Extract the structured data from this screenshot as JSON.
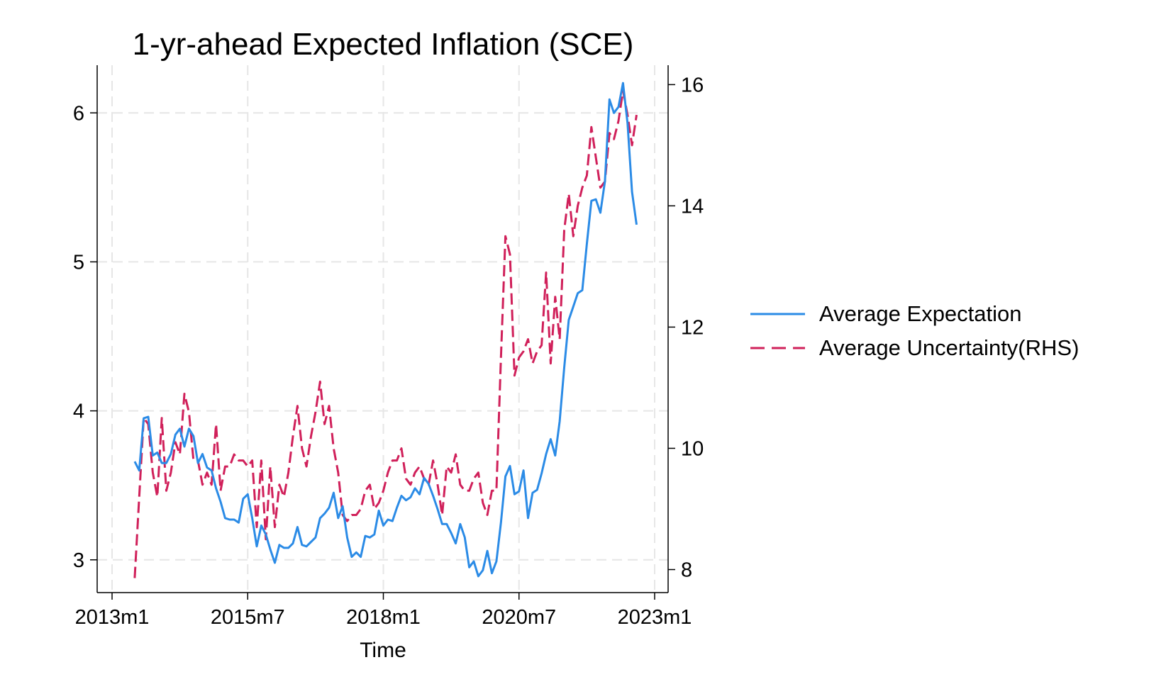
{
  "chart_data": {
    "type": "line",
    "title": "1-yr-ahead Expected Inflation (SCE)",
    "xlabel": "Time",
    "x_ticks": [
      "2013m1",
      "2015m7",
      "2018m1",
      "2020m7",
      "2023m1"
    ],
    "y_left": {
      "ticks": [
        3,
        4,
        5,
        6
      ],
      "range": [
        2.78,
        6.32
      ]
    },
    "y_right": {
      "ticks": [
        8,
        10,
        12,
        14,
        16
      ],
      "range": [
        7.62,
        16.32
      ]
    },
    "x_range": [
      "2013m1",
      "2023m1"
    ],
    "grid": true,
    "legend_position": "right",
    "series": [
      {
        "name": "Average Expectation",
        "axis": "left",
        "color": "#2b8be6",
        "style": "solid",
        "x": [
          "2013m6",
          "2013m7",
          "2013m8",
          "2013m9",
          "2013m10",
          "2013m11",
          "2013m12",
          "2014m1",
          "2014m2",
          "2014m3",
          "2014m4",
          "2014m5",
          "2014m6",
          "2014m7",
          "2014m8",
          "2014m9",
          "2014m10",
          "2014m11",
          "2014m12",
          "2015m1",
          "2015m2",
          "2015m3",
          "2015m4",
          "2015m5",
          "2015m6",
          "2015m7",
          "2015m8",
          "2015m9",
          "2015m10",
          "2015m11",
          "2015m12",
          "2016m1",
          "2016m2",
          "2016m3",
          "2016m4",
          "2016m5",
          "2016m6",
          "2016m7",
          "2016m8",
          "2016m9",
          "2016m10",
          "2016m11",
          "2016m12",
          "2017m1",
          "2017m2",
          "2017m3",
          "2017m4",
          "2017m5",
          "2017m6",
          "2017m7",
          "2017m8",
          "2017m9",
          "2017m10",
          "2017m11",
          "2017m12",
          "2018m1",
          "2018m2",
          "2018m3",
          "2018m4",
          "2018m5",
          "2018m6",
          "2018m7",
          "2018m8",
          "2018m9",
          "2018m10",
          "2018m11",
          "2018m12",
          "2019m1",
          "2019m2",
          "2019m3",
          "2019m4",
          "2019m5",
          "2019m6",
          "2019m7",
          "2019m8",
          "2019m9",
          "2019m10",
          "2019m11",
          "2019m12",
          "2020m1",
          "2020m2",
          "2020m3",
          "2020m4",
          "2020m5",
          "2020m6",
          "2020m7",
          "2020m8",
          "2020m9",
          "2020m10",
          "2020m11",
          "2020m12",
          "2021m1",
          "2021m2",
          "2021m3",
          "2021m4",
          "2021m5",
          "2021m6",
          "2021m7",
          "2021m8",
          "2021m9",
          "2021m10",
          "2021m11",
          "2021m12",
          "2022m1",
          "2022m2",
          "2022m3",
          "2022m4",
          "2022m5",
          "2022m6",
          "2022m7",
          "2022m8",
          "2022m9"
        ],
        "values": [
          3.66,
          3.6,
          3.95,
          3.96,
          3.7,
          3.72,
          3.65,
          3.65,
          3.71,
          3.84,
          3.88,
          3.76,
          3.88,
          3.83,
          3.65,
          3.71,
          3.62,
          3.6,
          3.48,
          3.39,
          3.28,
          3.27,
          3.27,
          3.25,
          3.41,
          3.44,
          3.28,
          3.09,
          3.23,
          3.17,
          3.07,
          2.98,
          3.1,
          3.08,
          3.08,
          3.11,
          3.22,
          3.1,
          3.09,
          3.12,
          3.15,
          3.28,
          3.31,
          3.35,
          3.45,
          3.28,
          3.36,
          3.15,
          3.02,
          3.05,
          3.02,
          3.16,
          3.15,
          3.17,
          3.33,
          3.23,
          3.27,
          3.26,
          3.35,
          3.43,
          3.4,
          3.42,
          3.48,
          3.44,
          3.55,
          3.51,
          3.43,
          3.34,
          3.24,
          3.24,
          3.18,
          3.11,
          3.24,
          3.15,
          2.95,
          2.99,
          2.89,
          2.93,
          3.06,
          2.91,
          2.99,
          3.25,
          3.56,
          3.63,
          3.44,
          3.46,
          3.6,
          3.28,
          3.45,
          3.47,
          3.58,
          3.71,
          3.81,
          3.7,
          3.93,
          4.29,
          4.61,
          4.7,
          4.79,
          4.81,
          5.12,
          5.41,
          5.42,
          5.33,
          5.54,
          6.09,
          6.0,
          6.04,
          6.2,
          5.93,
          5.47,
          5.25
        ]
      },
      {
        "name": "Average Uncertainty(RHS)",
        "axis": "right",
        "color": "#d0205a",
        "style": "dashed",
        "x": [
          "2013m6",
          "2013m7",
          "2013m8",
          "2013m9",
          "2013m10",
          "2013m11",
          "2013m12",
          "2014m1",
          "2014m2",
          "2014m3",
          "2014m4",
          "2014m5",
          "2014m6",
          "2014m7",
          "2014m8",
          "2014m9",
          "2014m10",
          "2014m11",
          "2014m12",
          "2015m1",
          "2015m2",
          "2015m3",
          "2015m4",
          "2015m5",
          "2015m6",
          "2015m7",
          "2015m8",
          "2015m9",
          "2015m10",
          "2015m11",
          "2015m12",
          "2016m1",
          "2016m2",
          "2016m3",
          "2016m4",
          "2016m5",
          "2016m6",
          "2016m7",
          "2016m8",
          "2016m9",
          "2016m10",
          "2016m11",
          "2016m12",
          "2017m1",
          "2017m2",
          "2017m3",
          "2017m4",
          "2017m5",
          "2017m6",
          "2017m7",
          "2017m8",
          "2017m9",
          "2017m10",
          "2017m11",
          "2017m12",
          "2018m1",
          "2018m2",
          "2018m3",
          "2018m4",
          "2018m5",
          "2018m6",
          "2018m7",
          "2018m8",
          "2018m9",
          "2018m10",
          "2018m11",
          "2018m12",
          "2019m1",
          "2019m2",
          "2019m3",
          "2019m4",
          "2019m5",
          "2019m6",
          "2019m7",
          "2019m8",
          "2019m9",
          "2019m10",
          "2019m11",
          "2019m12",
          "2020m1",
          "2020m2",
          "2020m3",
          "2020m4",
          "2020m5",
          "2020m6",
          "2020m7",
          "2020m8",
          "2020m9",
          "2020m10",
          "2020m11",
          "2020m12",
          "2021m1",
          "2021m2",
          "2021m3",
          "2021m4",
          "2021m5",
          "2021m6",
          "2021m7",
          "2021m8",
          "2021m9",
          "2021m10",
          "2021m11",
          "2021m12",
          "2022m1",
          "2022m2",
          "2022m3",
          "2022m4",
          "2022m5",
          "2022m6",
          "2022m7",
          "2022m8",
          "2022m9"
        ],
        "values": [
          7.86,
          9.2,
          10.5,
          10.4,
          9.6,
          9.2,
          10.5,
          9.3,
          9.6,
          10.1,
          9.9,
          10.9,
          10.6,
          9.8,
          9.8,
          9.4,
          9.6,
          9.4,
          10.4,
          9.3,
          9.7,
          9.7,
          9.9,
          9.8,
          9.8,
          9.7,
          9.8,
          8.7,
          9.8,
          8.5,
          9.7,
          8.7,
          9.4,
          9.2,
          9.6,
          10.2,
          10.7,
          10.0,
          9.7,
          10.2,
          10.6,
          11.1,
          10.4,
          10.7,
          10.0,
          9.6,
          8.9,
          8.8,
          8.9,
          8.9,
          9.0,
          9.3,
          9.4,
          9.0,
          9.1,
          9.3,
          9.6,
          9.8,
          9.8,
          10.0,
          9.5,
          9.4,
          9.6,
          9.7,
          9.5,
          9.4,
          9.8,
          9.4,
          8.9,
          9.7,
          9.6,
          9.9,
          9.4,
          9.3,
          9.3,
          9.5,
          9.6,
          9.1,
          8.9,
          9.3,
          9.3,
          11.5,
          13.5,
          13.2,
          11.2,
          11.5,
          11.6,
          11.8,
          11.4,
          11.6,
          11.7,
          12.9,
          11.4,
          12.5,
          11.8,
          13.6,
          14.2,
          13.5,
          14.0,
          14.3,
          14.5,
          15.3,
          14.8,
          14.3,
          14.4,
          15.2,
          15.1,
          15.4,
          15.9,
          15.5,
          15.0,
          15.5
        ]
      }
    ]
  }
}
